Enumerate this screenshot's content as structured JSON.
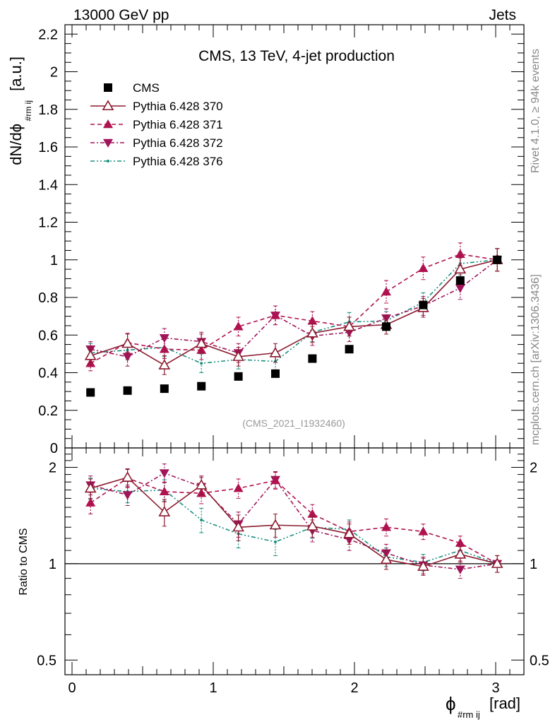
{
  "header": {
    "energy_label": "13000 GeV pp",
    "category_label": "Jets"
  },
  "side_texts": {
    "rivet": "Rivet 4.1.0, ≥ 94k events",
    "source": "mcplots.cern.ch [arXiv:1306.3436]"
  },
  "chart_data": {
    "type": "scatter",
    "title": "CMS, 13 TeV, 4-jet production",
    "watermark": "(CMS_2021_I1932460)",
    "xlabel": "ϕ",
    "xlabel_sub": "#rm ij",
    "xlabel_unit": "[rad]",
    "ylabel": "dN/dϕ",
    "ylabel_sub": "#rm ij",
    "ylabel_unit": "[a.u.]",
    "ratio_ylabel": "Ratio to CMS",
    "xlim": [
      -0.05,
      3.2
    ],
    "ylim": [
      0,
      2.25
    ],
    "ratio_ylim": [
      0.45,
      2.3
    ],
    "x_ticks": [
      "0",
      "1",
      "2",
      "3"
    ],
    "x_tick_values": [
      0,
      1,
      2,
      3
    ],
    "y_ticks": [
      "0",
      "0.2",
      "0.4",
      "0.6",
      "0.8",
      "1",
      "1.2",
      "1.4",
      "1.6",
      "1.8",
      "2",
      "2.2"
    ],
    "y_tick_values": [
      0,
      0.2,
      0.4,
      0.6,
      0.8,
      1,
      1.2,
      1.4,
      1.6,
      1.8,
      2,
      2.2
    ],
    "ratio_ticks": [
      "0.5",
      "1",
      "2"
    ],
    "ratio_tick_values": [
      0.5,
      1,
      2
    ],
    "x": [
      0.131,
      0.393,
      0.654,
      0.916,
      1.178,
      1.44,
      1.702,
      1.963,
      2.225,
      2.487,
      2.749,
      3.011
    ],
    "data": {
      "name": "CMS",
      "values": [
        0.295,
        0.305,
        0.315,
        0.328,
        0.38,
        0.395,
        0.475,
        0.525,
        0.645,
        0.76,
        0.89,
        1.0
      ]
    },
    "series": [
      {
        "name": "Pythia 6.428 370",
        "color": "#8b1a2f",
        "marker": "open-triangle-up",
        "dash": "",
        "values": [
          0.49,
          0.555,
          0.44,
          0.555,
          0.485,
          0.505,
          0.61,
          0.645,
          0.655,
          0.745,
          0.95,
          1.0
        ],
        "errors": [
          0.04,
          0.05,
          0.05,
          0.05,
          0.05,
          0.05,
          0.05,
          0.05,
          0.05,
          0.05,
          0.06,
          0.06
        ],
        "ratio": [
          1.72,
          1.86,
          1.45,
          1.76,
          1.3,
          1.32,
          1.31,
          1.24,
          1.03,
          0.98,
          1.07,
          1.0
        ],
        "ratio_errors": [
          0.12,
          0.12,
          0.14,
          0.12,
          0.12,
          0.11,
          0.1,
          0.09,
          0.07,
          0.06,
          0.06,
          0.06
        ]
      },
      {
        "name": "Pythia 6.428 371",
        "color": "#b0124f",
        "marker": "triangle-up",
        "dash": "6,4",
        "values": [
          0.45,
          0.56,
          0.525,
          0.52,
          0.645,
          0.705,
          0.675,
          0.645,
          0.83,
          0.955,
          1.03,
          1.0
        ],
        "errors": [
          0.04,
          0.05,
          0.05,
          0.05,
          0.05,
          0.05,
          0.05,
          0.05,
          0.06,
          0.06,
          0.06,
          0.06
        ],
        "ratio": [
          1.55,
          1.85,
          1.68,
          1.66,
          1.72,
          1.82,
          1.43,
          1.26,
          1.3,
          1.26,
          1.16,
          1.0
        ],
        "ratio_errors": [
          0.12,
          0.12,
          0.12,
          0.12,
          0.12,
          0.11,
          0.1,
          0.09,
          0.08,
          0.07,
          0.06,
          0.06
        ]
      },
      {
        "name": "Pythia 6.428 372",
        "color": "#a0155a",
        "marker": "triangle-down",
        "dash": "6,3,2,3",
        "values": [
          0.525,
          0.485,
          0.585,
          0.565,
          0.505,
          0.705,
          0.595,
          0.615,
          0.69,
          0.755,
          0.85,
          1.0
        ],
        "errors": [
          0.04,
          0.05,
          0.05,
          0.05,
          0.05,
          0.05,
          0.05,
          0.05,
          0.05,
          0.05,
          0.06,
          0.06
        ],
        "ratio": [
          1.76,
          1.64,
          1.92,
          1.74,
          1.33,
          1.83,
          1.27,
          1.19,
          1.08,
          0.99,
          0.96,
          1.0
        ],
        "ratio_errors": [
          0.12,
          0.12,
          0.13,
          0.12,
          0.12,
          0.11,
          0.1,
          0.09,
          0.07,
          0.06,
          0.06,
          0.06
        ]
      },
      {
        "name": "Pythia 6.428 376",
        "color": "#1a9080",
        "marker": "dot",
        "dash": "6,3,2,3,2,3",
        "values": [
          0.505,
          0.52,
          0.535,
          0.45,
          0.47,
          0.46,
          0.615,
          0.67,
          0.675,
          0.775,
          0.98,
          1.0
        ],
        "errors": [
          0.05,
          0.05,
          0.05,
          0.05,
          0.05,
          0.05,
          0.05,
          0.05,
          0.05,
          0.05,
          0.06,
          0.06
        ],
        "ratio": [
          1.72,
          1.68,
          1.7,
          1.37,
          1.24,
          1.17,
          1.3,
          1.28,
          1.05,
          1.01,
          1.1,
          1.0
        ],
        "ratio_errors": [
          0.13,
          0.13,
          0.13,
          0.12,
          0.12,
          0.11,
          0.1,
          0.09,
          0.07,
          0.06,
          0.06,
          0.06
        ]
      }
    ]
  }
}
